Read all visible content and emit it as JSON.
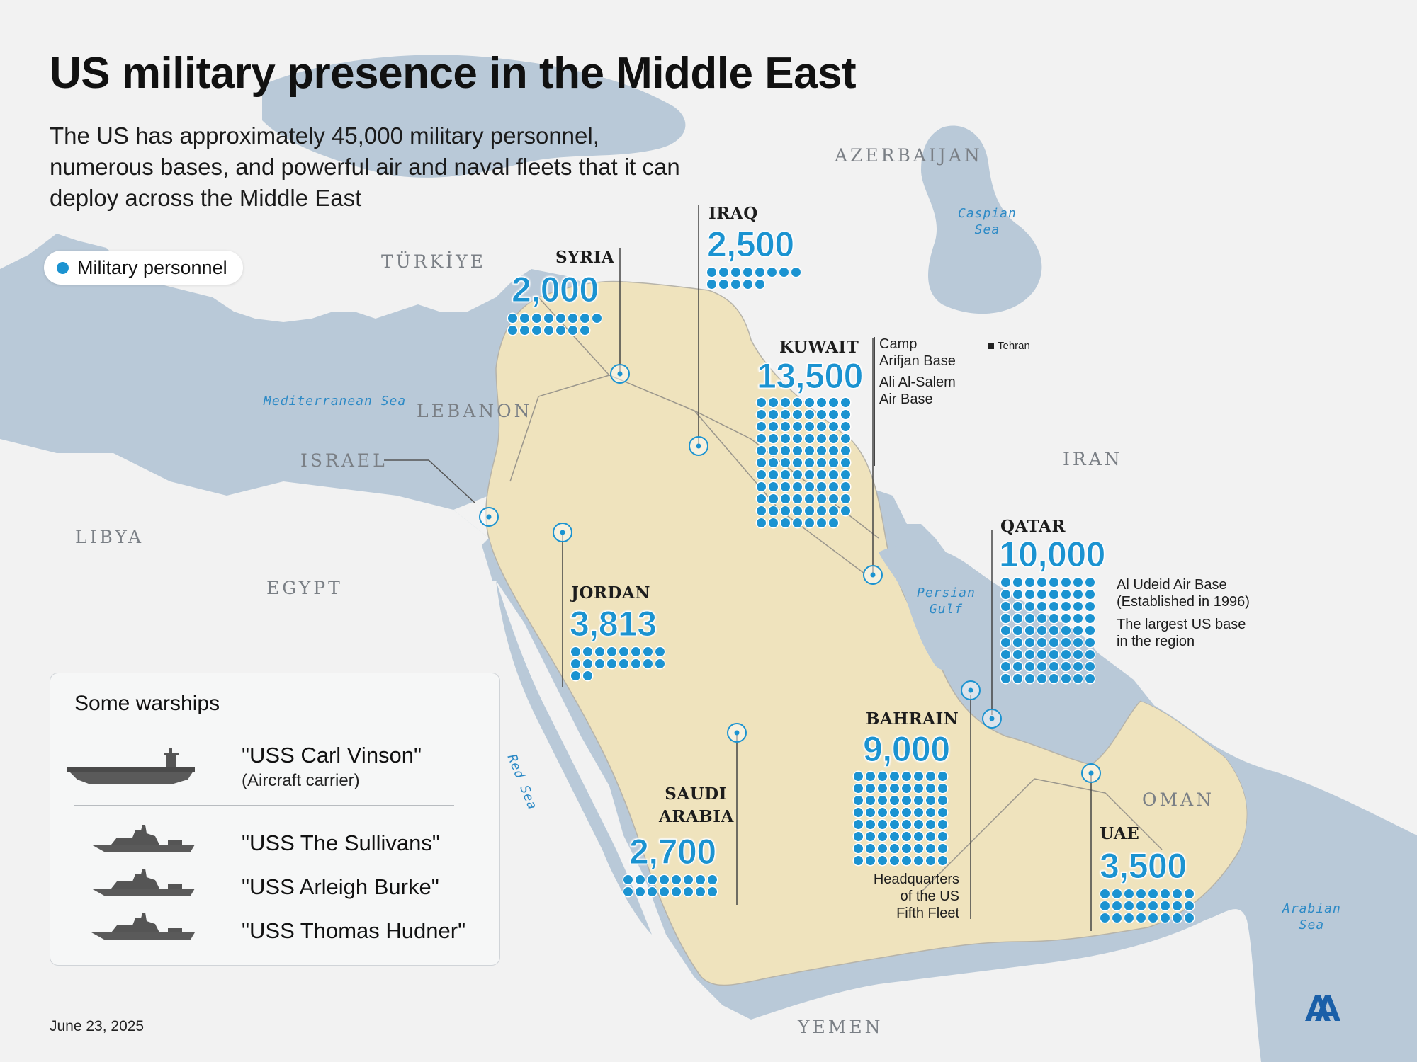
{
  "header": {
    "title": "US military presence in the Middle East",
    "subtitle": "The US has approximately 45,000 military personnel, numerous bases, and powerful air and naval fleets that it can deploy across the Middle East"
  },
  "legend": {
    "label": "Military personnel",
    "color": "#1b93d1"
  },
  "geo_labels": {
    "turkiye": "TÜRKİYE",
    "azerbaijan": "AZERBAIJAN",
    "lebanon": "LEBANON",
    "israel": "ISRAEL",
    "libya": "LIBYA",
    "egypt": "EGYPT",
    "iran": "IRAN",
    "oman": "OMAN",
    "yemen": "YEMEN"
  },
  "seas": {
    "caspian": "Caspian\nSea",
    "mediterranean": "Mediterranean Sea",
    "red": "Red Sea",
    "persian": "Persian\nGulf",
    "arabian": "Arabian\nSea"
  },
  "cities": {
    "tehran": "Tehran"
  },
  "deployments": {
    "syria": {
      "country": "SYRIA",
      "personnel": "2,000",
      "value": 2000
    },
    "iraq": {
      "country": "IRAQ",
      "personnel": "2,500",
      "value": 2500
    },
    "kuwait": {
      "country": "KUWAIT",
      "personnel": "13,500",
      "value": 13500,
      "bases": [
        "Camp\nArifjan Base",
        "Ali Al-Salem\nAir Base"
      ]
    },
    "qatar": {
      "country": "QATAR",
      "personnel": "10,000",
      "value": 10000,
      "notes": [
        "Al Udeid Air Base\n(Established in 1996)",
        "The largest US base\nin the region"
      ]
    },
    "jordan": {
      "country": "JORDAN",
      "personnel": "3,813",
      "value": 3813
    },
    "bahrain": {
      "country": "BAHRAIN",
      "personnel": "9,000",
      "value": 9000,
      "note": "Headquarters\nof the US\nFifth Fleet"
    },
    "saudi_arabia": {
      "country": "SAUDI\nARABIA",
      "personnel": "2,700",
      "value": 2700
    },
    "uae": {
      "country": "UAE",
      "personnel": "3,500",
      "value": 3500
    }
  },
  "warships": {
    "heading": "Some warships",
    "ships": [
      {
        "name": "\"USS Carl Vinson\"",
        "type": "(Aircraft carrier)",
        "icon": "aircraft-carrier-icon"
      },
      {
        "name": "\"USS The Sullivans\"",
        "icon": "destroyer-icon"
      },
      {
        "name": "\"USS Arleigh Burke\"",
        "icon": "destroyer-icon"
      },
      {
        "name": "\"USS Thomas Hudner\"",
        "icon": "destroyer-icon"
      }
    ]
  },
  "date": "June 23, 2025",
  "colors": {
    "land_highlight": "#efe3bd",
    "land": "#f3f3f3",
    "water": "#b9c9d8",
    "accent": "#1b93d1"
  }
}
